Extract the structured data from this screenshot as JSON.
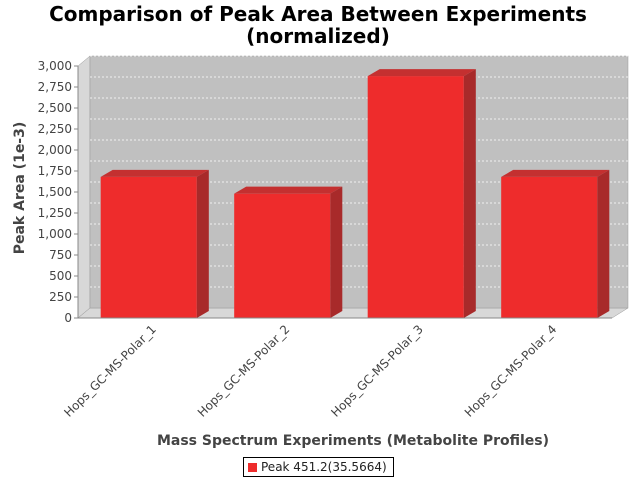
{
  "chart_data": {
    "type": "bar",
    "title": [
      "Comparison of Peak Area Between Experiments",
      "(normalized)"
    ],
    "xlabel": "Mass Spectrum Experiments (Metabolite Profiles)",
    "ylabel": "Peak Area (1e-3)",
    "categories": [
      "Hops_GC-MS-Polar_1",
      "Hops_GC-MS-Polar_2",
      "Hops_GC-MS-Polar_3",
      "Hops_GC-MS-Polar_4"
    ],
    "series": [
      {
        "name": "Peak 451.2(35.5664)",
        "values": [
          1680,
          1480,
          2880,
          1680
        ]
      }
    ],
    "ylim": [
      0,
      3000
    ],
    "yticks": [
      "0",
      "250",
      "500",
      "750",
      "1,000",
      "1,250",
      "1,500",
      "1,750",
      "2,000",
      "2,250",
      "2,500",
      "2,750",
      "3,000"
    ],
    "grid": true,
    "legend_position": "bottom",
    "colors": {
      "bar": "#ee2c2c",
      "bar_top": "#c43030",
      "bar_side": "#a82a2a",
      "plot_bg": "#c0c0c0",
      "wall": "#d8d8d8"
    }
  }
}
